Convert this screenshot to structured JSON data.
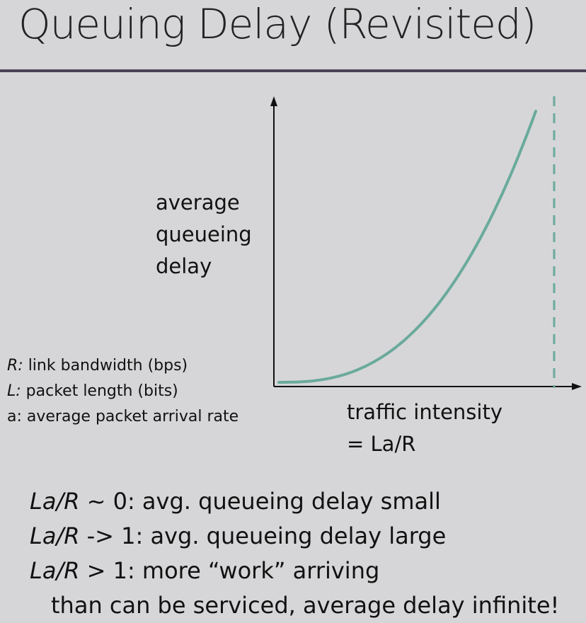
{
  "slide": {
    "title": "Queuing Delay (Revisited)"
  },
  "plot": {
    "ylabel_lines": [
      "average",
      "queueing",
      "delay"
    ],
    "xlabel_lines": [
      "traffic intensity",
      "= La/R"
    ],
    "curve_color": "#6aaa9c",
    "axis_color": "#111111"
  },
  "legend": [
    {
      "symbol": "R:",
      "text": " link bandwidth (bps)",
      "italic": true
    },
    {
      "symbol": "L:",
      "text": " packet length (bits)",
      "italic": true
    },
    {
      "symbol": "a:",
      "text": " average packet arrival rate",
      "italic": false
    }
  ],
  "notes": [
    {
      "expr": "La/R",
      "text": " ~ 0: avg. queueing delay small"
    },
    {
      "expr": "La/R",
      "text": " -> 1: avg. queueing delay large"
    },
    {
      "expr": "La/R",
      "text": " > 1: more “work” arriving"
    },
    {
      "expr": "",
      "text": "than can be serviced, average delay infinite!"
    }
  ]
}
